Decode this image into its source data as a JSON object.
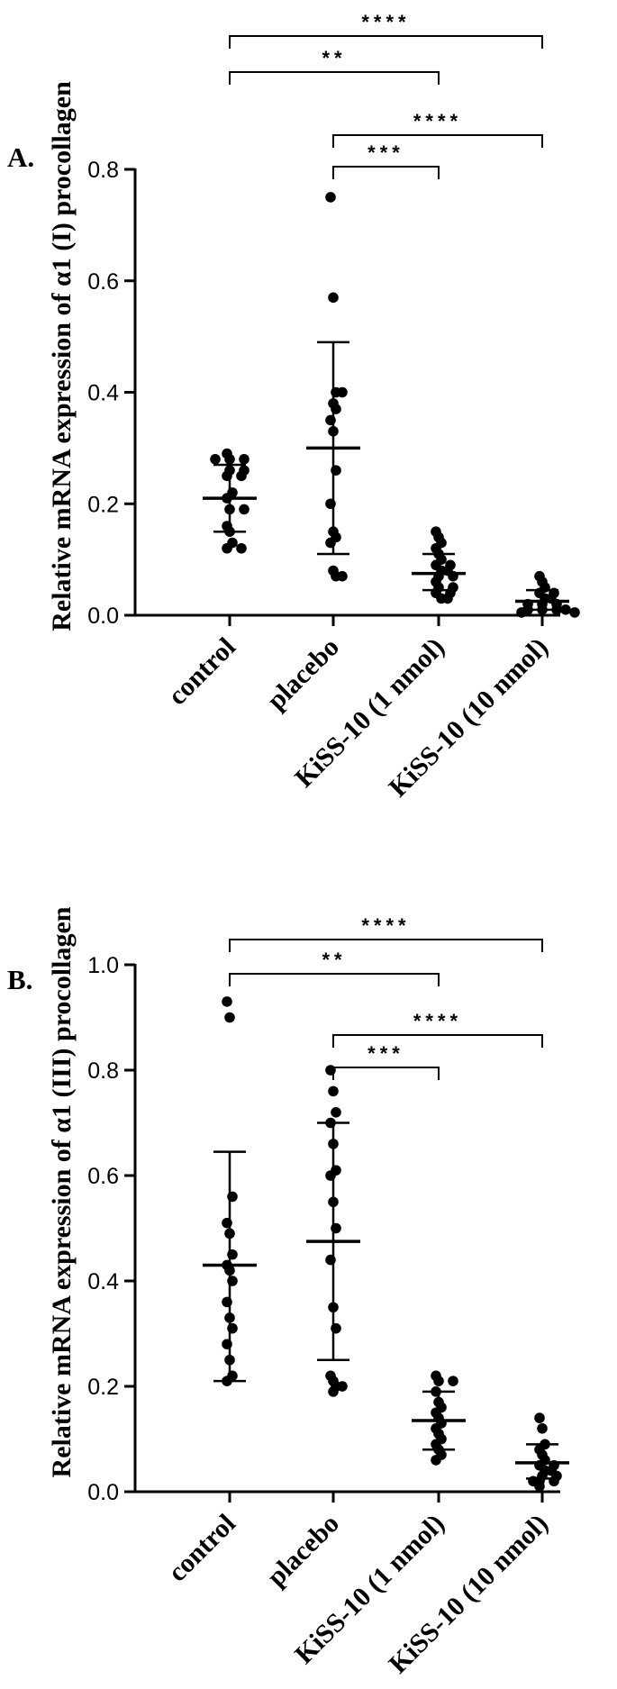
{
  "chart_data": [
    {
      "type": "scatter",
      "panel_label": "A.",
      "ylabel": "Relative mRNA expression of α1 (I) procollagen",
      "xlabel": "",
      "ylim": [
        0,
        0.8
      ],
      "yticks": [
        0.0,
        0.2,
        0.4,
        0.6,
        0.8
      ],
      "ytick_labels": [
        "0.0",
        "0.2",
        "0.4",
        "0.6",
        "0.8"
      ],
      "categories": [
        "control",
        "placebo",
        "KiSS-10 (1 nmol)",
        "KiSS-10 (10 nmol)"
      ],
      "series": [
        {
          "mean": 0.21,
          "sd_low": 0.15,
          "sd_high": 0.27,
          "points": [
            0.29,
            0.28,
            0.28,
            0.28,
            0.26,
            0.26,
            0.25,
            0.25,
            0.22,
            0.21,
            0.19,
            0.19,
            0.16,
            0.15,
            0.13,
            0.12,
            0.12
          ]
        },
        {
          "mean": 0.3,
          "sd_low": 0.11,
          "sd_high": 0.49,
          "points": [
            0.75,
            0.57,
            0.4,
            0.4,
            0.38,
            0.37,
            0.35,
            0.33,
            0.26,
            0.2,
            0.15,
            0.14,
            0.13,
            0.08,
            0.07,
            0.07
          ]
        },
        {
          "mean": 0.075,
          "sd_low": 0.045,
          "sd_high": 0.11,
          "points": [
            0.15,
            0.14,
            0.13,
            0.12,
            0.11,
            0.1,
            0.09,
            0.09,
            0.08,
            0.08,
            0.07,
            0.07,
            0.06,
            0.05,
            0.05,
            0.04,
            0.04,
            0.03,
            0.03
          ]
        },
        {
          "mean": 0.025,
          "sd_low": 0.01,
          "sd_high": 0.045,
          "points": [
            0.07,
            0.06,
            0.05,
            0.04,
            0.04,
            0.03,
            0.03,
            0.02,
            0.02,
            0.02,
            0.01,
            0.01,
            0.01,
            0.01,
            0.005,
            0.005
          ]
        }
      ],
      "significance": [
        {
          "from": 0,
          "to": 3,
          "label": "****"
        },
        {
          "from": 0,
          "to": 2,
          "label": "**"
        },
        {
          "from": 1,
          "to": 3,
          "label": "****"
        },
        {
          "from": 1,
          "to": 2,
          "label": "***"
        }
      ]
    },
    {
      "type": "scatter",
      "panel_label": "B.",
      "ylabel": "Relative mRNA expression of α1 (III) procollagen",
      "xlabel": "",
      "ylim": [
        0,
        1.0
      ],
      "yticks": [
        0.0,
        0.2,
        0.4,
        0.6,
        0.8,
        1.0
      ],
      "ytick_labels": [
        "0.0",
        "0.2",
        "0.4",
        "0.6",
        "0.8",
        "1.0"
      ],
      "categories": [
        "control",
        "placebo",
        "KiSS-10 (1 nmol)",
        "KiSS-10 (10 nmol)"
      ],
      "series": [
        {
          "mean": 0.43,
          "sd_low": 0.21,
          "sd_high": 0.645,
          "points": [
            0.93,
            0.9,
            0.56,
            0.51,
            0.49,
            0.45,
            0.43,
            0.42,
            0.4,
            0.36,
            0.33,
            0.31,
            0.28,
            0.25,
            0.22,
            0.21
          ]
        },
        {
          "mean": 0.475,
          "sd_low": 0.25,
          "sd_high": 0.7,
          "points": [
            0.8,
            0.76,
            0.72,
            0.7,
            0.66,
            0.61,
            0.6,
            0.55,
            0.5,
            0.44,
            0.35,
            0.31,
            0.22,
            0.21,
            0.2,
            0.2,
            0.19
          ]
        },
        {
          "mean": 0.135,
          "sd_low": 0.08,
          "sd_high": 0.19,
          "points": [
            0.22,
            0.21,
            0.21,
            0.19,
            0.17,
            0.16,
            0.15,
            0.14,
            0.13,
            0.12,
            0.11,
            0.1,
            0.09,
            0.08,
            0.07,
            0.06
          ]
        },
        {
          "mean": 0.055,
          "sd_low": 0.025,
          "sd_high": 0.09,
          "points": [
            0.14,
            0.12,
            0.09,
            0.08,
            0.07,
            0.06,
            0.05,
            0.05,
            0.04,
            0.04,
            0.03,
            0.03,
            0.02,
            0.02,
            0.02,
            0.01
          ]
        }
      ],
      "significance": [
        {
          "from": 0,
          "to": 3,
          "label": "****"
        },
        {
          "from": 0,
          "to": 2,
          "label": "**"
        },
        {
          "from": 1,
          "to": 3,
          "label": "****"
        },
        {
          "from": 1,
          "to": 2,
          "label": "***"
        }
      ]
    }
  ]
}
